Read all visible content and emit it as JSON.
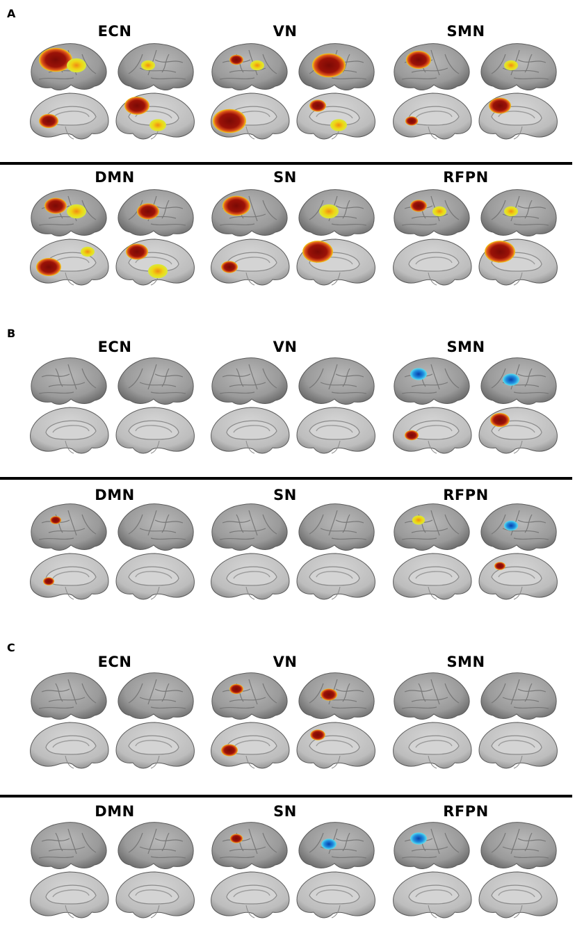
{
  "panels": [
    {
      "letter": "A",
      "rows": [
        {
          "networks": [
            {
              "name": "ECN",
              "blobs": [
                [
                  0,
                  "red",
                  0.45
                ],
                [
                  0,
                  "yellow",
                  0.2
                ],
                [
                  1,
                  "yellow",
                  0.1
                ],
                [
                  2,
                  "red",
                  0.2
                ],
                [
                  3,
                  "red",
                  0.3
                ],
                [
                  3,
                  "yellow",
                  0.15
                ]
              ]
            },
            {
              "name": "VN",
              "blobs": [
                [
                  0,
                  "red",
                  0.1
                ],
                [
                  0,
                  "yellow",
                  0.1
                ],
                [
                  1,
                  "red",
                  0.45
                ],
                [
                  2,
                  "red",
                  0.45
                ],
                [
                  3,
                  "red",
                  0.15
                ],
                [
                  3,
                  "yellow",
                  0.15
                ]
              ]
            },
            {
              "name": "SMN",
              "blobs": [
                [
                  0,
                  "red",
                  0.3
                ],
                [
                  1,
                  "yellow",
                  0.1
                ],
                [
                  2,
                  "red",
                  0.08
                ],
                [
                  3,
                  "red",
                  0.25
                ]
              ]
            }
          ]
        },
        {
          "networks": [
            {
              "name": "DMN",
              "blobs": [
                [
                  0,
                  "red",
                  0.25
                ],
                [
                  0,
                  "yellow",
                  0.2
                ],
                [
                  1,
                  "red",
                  0.25
                ],
                [
                  2,
                  "red",
                  0.3
                ],
                [
                  2,
                  "yellow",
                  0.1
                ],
                [
                  3,
                  "red",
                  0.25
                ],
                [
                  3,
                  "yellow",
                  0.2
                ]
              ]
            },
            {
              "name": "SN",
              "blobs": [
                [
                  0,
                  "red",
                  0.35
                ],
                [
                  1,
                  "yellow",
                  0.2
                ],
                [
                  2,
                  "red",
                  0.15
                ],
                [
                  3,
                  "red",
                  0.4
                ]
              ]
            },
            {
              "name": "RFPN",
              "blobs": [
                [
                  0,
                  "red",
                  0.15
                ],
                [
                  0,
                  "yellow",
                  0.1
                ],
                [
                  1,
                  "yellow",
                  0.1
                ],
                [
                  3,
                  "red",
                  0.4
                ]
              ]
            }
          ]
        }
      ]
    },
    {
      "letter": "B",
      "rows": [
        {
          "networks": [
            {
              "name": "ECN",
              "blobs": []
            },
            {
              "name": "VN",
              "blobs": []
            },
            {
              "name": "SMN",
              "blobs": [
                [
                  0,
                  "blue",
                  0.15
                ],
                [
                  1,
                  "blue",
                  0.15
                ],
                [
                  2,
                  "red",
                  0.1
                ],
                [
                  3,
                  "red",
                  0.2
                ]
              ]
            }
          ]
        },
        {
          "networks": [
            {
              "name": "DMN",
              "blobs": [
                [
                  0,
                  "red",
                  0.05
                ],
                [
                  2,
                  "red",
                  0.05
                ]
              ]
            },
            {
              "name": "SN",
              "blobs": []
            },
            {
              "name": "RFPN",
              "blobs": [
                [
                  0,
                  "yellow",
                  0.08
                ],
                [
                  1,
                  "blue",
                  0.1
                ],
                [
                  3,
                  "red",
                  0.05
                ]
              ]
            }
          ]
        }
      ]
    },
    {
      "letter": "C",
      "rows": [
        {
          "networks": [
            {
              "name": "ECN",
              "blobs": []
            },
            {
              "name": "VN",
              "blobs": [
                [
                  0,
                  "red",
                  0.1
                ],
                [
                  1,
                  "red",
                  0.15
                ],
                [
                  2,
                  "red",
                  0.15
                ],
                [
                  3,
                  "red",
                  0.12
                ]
              ]
            },
            {
              "name": "SMN",
              "blobs": []
            }
          ]
        },
        {
          "networks": [
            {
              "name": "DMN",
              "blobs": []
            },
            {
              "name": "SN",
              "blobs": [
                [
                  0,
                  "red",
                  0.08
                ],
                [
                  1,
                  "blue",
                  0.12
                ]
              ]
            },
            {
              "name": "RFPN",
              "blobs": [
                [
                  0,
                  "blue",
                  0.15
                ]
              ]
            }
          ]
        }
      ]
    }
  ],
  "colors": {
    "red": "#8b0e07",
    "yellow": "#e8d812",
    "blue": "#1aa9e0",
    "cortex": "#9a9a9a",
    "medial": "#c9c9c9"
  }
}
